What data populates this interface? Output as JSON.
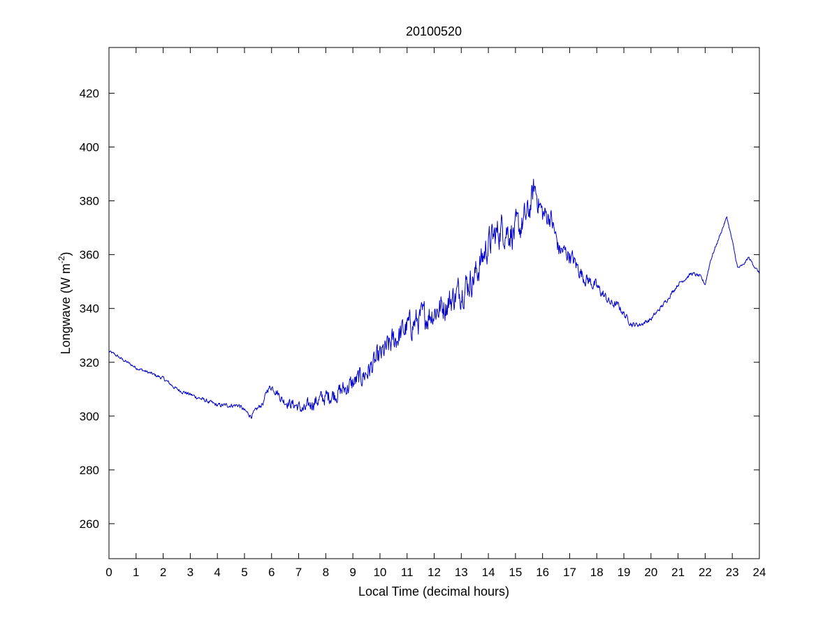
{
  "colors": {
    "line": "#0000cc",
    "axes": "#000000",
    "background": "#ffffff"
  },
  "chart_data": {
    "type": "line",
    "title": "20100520",
    "xlabel": "Local Time (decimal hours)",
    "ylabel_main": "Longwave (W m",
    "ylabel_sup": "-2",
    "ylabel_close": ")",
    "xlim": [
      0,
      24
    ],
    "ylim": [
      247,
      437
    ],
    "xticks": [
      0,
      1,
      2,
      3,
      4,
      5,
      6,
      7,
      8,
      9,
      10,
      11,
      12,
      13,
      14,
      15,
      16,
      17,
      18,
      19,
      20,
      21,
      22,
      23,
      24
    ],
    "yticks": [
      260,
      280,
      300,
      320,
      340,
      360,
      380,
      400,
      420
    ],
    "grid": false,
    "legend": "none",
    "noise_amplitude": [
      [
        0,
        0.6
      ],
      [
        5.5,
        1.0
      ],
      [
        6.5,
        2.0
      ],
      [
        7.5,
        3.0
      ],
      [
        9,
        4.0
      ],
      [
        10.5,
        5.5
      ],
      [
        12,
        6.0
      ],
      [
        13.5,
        6.5
      ],
      [
        15,
        7.0
      ],
      [
        16.5,
        4.0
      ],
      [
        17.5,
        3.0
      ],
      [
        18.5,
        1.8
      ],
      [
        19.5,
        1.0
      ],
      [
        21.5,
        0.8
      ],
      [
        22.5,
        0.6
      ],
      [
        24,
        0.6
      ]
    ],
    "series": [
      {
        "x": [
          0,
          0.2,
          0.5,
          1.0,
          1.5,
          2.0,
          2.5,
          3.0,
          3.5,
          4.0,
          4.5,
          4.8,
          5.0,
          5.25,
          5.5,
          5.7,
          5.85,
          6.0,
          6.2,
          6.4,
          6.6,
          6.9,
          7.2,
          7.5,
          8.0,
          8.5,
          9.0,
          9.5,
          10.0,
          10.5,
          11.0,
          11.5,
          12.0,
          12.5,
          13.0,
          13.5,
          14.0,
          14.5,
          15.0,
          15.3,
          15.5,
          15.7,
          16.0,
          16.3,
          16.6,
          17.0,
          17.5,
          18.0,
          18.5,
          18.8,
          19.0,
          19.3,
          19.6,
          19.8,
          20.0,
          20.5,
          21.0,
          21.5,
          21.8,
          22.0,
          22.2,
          22.5,
          22.8,
          23.0,
          23.2,
          23.4,
          23.6,
          23.8,
          24.0
        ],
        "y": [
          324,
          323,
          321,
          318,
          316,
          314,
          310,
          308,
          306,
          304,
          304,
          304,
          302,
          300,
          303,
          305,
          310,
          311,
          309,
          306,
          305,
          304,
          302,
          305,
          307,
          309,
          312,
          316,
          322,
          328,
          333,
          336,
          339,
          342,
          347,
          352,
          364,
          370,
          368,
          372,
          376,
          385,
          375,
          374,
          362,
          360,
          352,
          348,
          342,
          341,
          338,
          334,
          334,
          335,
          336,
          342,
          349,
          353,
          352,
          349,
          358,
          366,
          374,
          365,
          355,
          356,
          359,
          356,
          353
        ]
      }
    ]
  }
}
